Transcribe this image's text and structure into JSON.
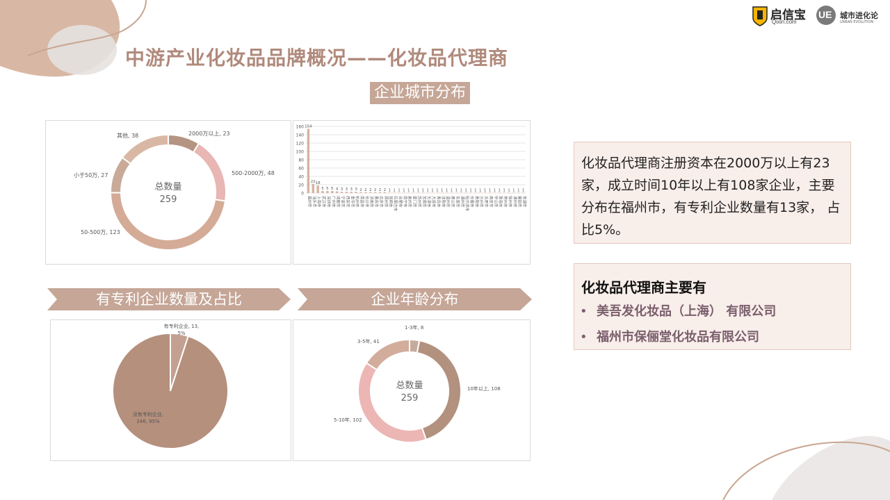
{
  "title": "中游产业化妆品品牌概况——化妆品代理商",
  "logos": {
    "qixin_name": "启信宝",
    "qixin_url": "Qixin.com",
    "ue_mark": "UE",
    "ue_name": "城市进化论",
    "ue_sub": "URBAN EVOLUTION"
  },
  "banners": {
    "city": "企业城市分布",
    "patent": "有专利企业数量及占比",
    "age": "企业年龄分布"
  },
  "summary": "化妆品代理商注册资本在2000万以上有23家，成立时间10年以上有108家企业，主要分布在福州市，有专利企业数量有13家， 占比5%。",
  "agents": {
    "heading": "化妆品代理商主要有",
    "bullet": "•",
    "items": [
      "美吾发化妆品（上海） 有限公司",
      "福州市保俪堂化妆品有限公司"
    ]
  },
  "chart_data": [
    {
      "type": "pie",
      "donut": true,
      "center_label": "总数量",
      "center_value": "259",
      "slices": [
        {
          "label": "2000万以上, 23",
          "value": 23,
          "color": "#b59484"
        },
        {
          "label": "500-2000万, 48",
          "value": 48,
          "color": "#e8b6b3"
        },
        {
          "label": "50-500万, 123",
          "value": 123,
          "color": "#d4ab97"
        },
        {
          "label": "小于50万, 27",
          "value": 27,
          "color": "#c9aa98"
        },
        {
          "label": "其他, 38",
          "value": 38,
          "color": "#d8b8a5"
        }
      ]
    },
    {
      "type": "bar",
      "ylim": [
        0,
        160
      ],
      "yticks": [
        0,
        20,
        40,
        60,
        80,
        100,
        120,
        140,
        160
      ],
      "values": [
        154,
        22,
        18,
        5,
        5,
        5,
        4,
        3,
        3,
        3,
        3,
        2,
        2,
        2,
        2,
        2,
        2,
        1,
        1,
        1,
        1,
        1,
        1,
        1,
        1,
        1,
        1,
        1,
        1,
        1,
        1,
        1,
        1,
        1,
        1,
        1,
        1,
        1,
        1,
        1,
        1,
        1,
        1,
        1,
        1,
        1
      ],
      "categories": [
        "福州市",
        "汕头市",
        "上海市",
        "武汉市",
        "深圳市",
        "广州市",
        "成都市",
        "宁波市",
        "西安市",
        "金华市",
        "杭州市",
        "南昌市",
        "长沙市",
        "济南市",
        "重庆市",
        "北京市",
        "郑州市",
        "昆明市",
        "石家庄市",
        "合肥市",
        "南宁市",
        "泉州市",
        "厦门市",
        "苏州市",
        "无锡市",
        "天津市",
        "大连市",
        "青岛市",
        "沈阳市",
        "温州市",
        "佛山市",
        "东莞市",
        "湖州市",
        "哈尔滨市",
        "长春市",
        "贵阳市",
        "兰州市",
        "太原市",
        "南京市",
        "中山市",
        "珠海市",
        "常州市",
        "徐州市",
        "漳州市",
        "莆田市",
        "芜湖市"
      ]
    },
    {
      "type": "pie",
      "slices": [
        {
          "label": "有专利企业, 13, 5%",
          "value": 13,
          "color": "#c4a090"
        },
        {
          "label": "没有专利企业, 246, 95%",
          "value": 246,
          "color": "#b5907d"
        }
      ]
    },
    {
      "type": "pie",
      "donut": true,
      "center_label": "总数量",
      "center_value": "259",
      "slices": [
        {
          "label": "1-3年, 8",
          "value": 8,
          "color": "#c6ab9c"
        },
        {
          "label": "10年以上, 108",
          "value": 108,
          "color": "#b3917f"
        },
        {
          "label": "5-10年, 102",
          "value": 102,
          "color": "#ecb6b5"
        },
        {
          "label": "3-5年, 41",
          "value": 41,
          "color": "#d2ad9c"
        }
      ]
    }
  ]
}
